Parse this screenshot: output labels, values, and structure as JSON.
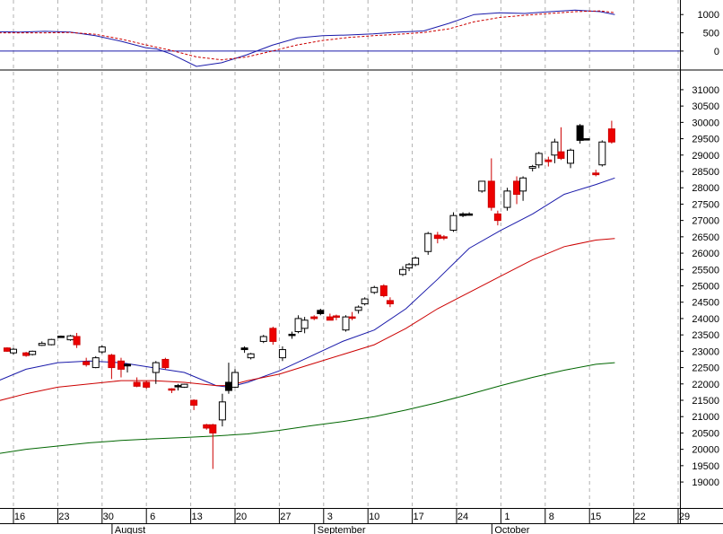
{
  "chart_data": [
    {
      "type": "line",
      "panel": "oscillator",
      "ylim": [
        -420,
        1300
      ],
      "yticks": [
        0,
        500,
        1000
      ],
      "ytick_labels": [
        "0",
        "500",
        "1000"
      ],
      "zero_line": 0,
      "series": [
        {
          "color": "#1a1aaa",
          "style": "solid",
          "x": [
            0,
            7,
            14,
            21,
            28,
            35,
            42,
            45,
            49,
            56,
            63,
            70,
            77,
            84,
            91,
            98,
            105,
            112,
            119,
            126,
            133,
            140,
            147,
            154,
            161,
            168,
            172
          ],
          "values": [
            530,
            520,
            540,
            520,
            420,
            270,
            90,
            60,
            -80,
            -420,
            -320,
            -100,
            160,
            360,
            420,
            440,
            470,
            520,
            550,
            760,
            1000,
            1050,
            1030,
            1080,
            1120,
            1080,
            1000
          ]
        },
        {
          "color": "#cc0000",
          "style": "dashed",
          "x": [
            0,
            7,
            14,
            21,
            28,
            35,
            42,
            49,
            56,
            63,
            70,
            77,
            84,
            91,
            98,
            105,
            112,
            119,
            126,
            133,
            140,
            147,
            154,
            161,
            168,
            172
          ],
          "values": [
            500,
            500,
            500,
            510,
            460,
            330,
            170,
            20,
            -160,
            -240,
            -160,
            0,
            170,
            290,
            370,
            420,
            460,
            510,
            610,
            800,
            920,
            980,
            1030,
            1080,
            1100,
            1050
          ]
        }
      ]
    },
    {
      "type": "candlestick",
      "panel": "price",
      "ylim": [
        18700,
        31300
      ],
      "yticks": [
        19000,
        19500,
        20000,
        20500,
        21000,
        21500,
        22000,
        22500,
        23000,
        23500,
        24000,
        24500,
        25000,
        25500,
        26000,
        26500,
        27000,
        27500,
        28000,
        28500,
        29000,
        29500,
        30000,
        30500,
        31000
      ],
      "ytick_labels": [
        "19000",
        "19500",
        "20000",
        "20500",
        "21000",
        "21500",
        "22000",
        "22500",
        "23000",
        "23500",
        "24000",
        "24500",
        "25000",
        "25500",
        "26000",
        "26500",
        "27000",
        "27500",
        "28000",
        "28500",
        "29000",
        "29500",
        "30000",
        "30500",
        "31000"
      ],
      "xlim": [
        0,
        179
      ],
      "x_ticks": [
        {
          "x": 3,
          "label": "16"
        },
        {
          "x": 10,
          "label": "23"
        },
        {
          "x": 17,
          "label": "30"
        },
        {
          "x": 24,
          "label": "6"
        },
        {
          "x": 31,
          "label": "13"
        },
        {
          "x": 38,
          "label": "20"
        },
        {
          "x": 45,
          "label": "27"
        },
        {
          "x": 52,
          "label": "3"
        },
        {
          "x": 59,
          "label": "10"
        },
        {
          "x": 66,
          "label": "17"
        },
        {
          "x": 73,
          "label": "24"
        },
        {
          "x": 80,
          "label": "1"
        },
        {
          "x": 87,
          "label": "8"
        },
        {
          "x": 94,
          "label": "15"
        },
        {
          "x": 101,
          "label": "22"
        },
        {
          "x": 108,
          "label": "29"
        }
      ],
      "x_labels": [
        {
          "x": 19,
          "label": "August"
        },
        {
          "x": 51,
          "label": "September"
        },
        {
          "x": 79,
          "label": "October"
        }
      ],
      "grid": "vertical-dashed",
      "candles": [
        {
          "x": 0,
          "o": 23150,
          "h": 23200,
          "l": 23100,
          "c": 23150,
          "fill": "black"
        },
        {
          "x": 2,
          "o": 23100,
          "h": 23120,
          "l": 22980,
          "c": 23000,
          "fill": "red"
        },
        {
          "x": 3,
          "o": 22950,
          "h": 23100,
          "l": 22900,
          "c": 23060,
          "fill": "white"
        },
        {
          "x": 5,
          "o": 22950,
          "h": 22980,
          "l": 22830,
          "c": 22870,
          "fill": "red"
        },
        {
          "x": 6,
          "o": 22900,
          "h": 23020,
          "l": 22870,
          "c": 23000,
          "fill": "white"
        },
        {
          "x": 7.5,
          "o": 23180,
          "h": 23300,
          "l": 23160,
          "c": 23240,
          "fill": "white"
        },
        {
          "x": 9,
          "o": 23200,
          "h": 23380,
          "l": 23180,
          "c": 23360,
          "fill": "white"
        },
        {
          "x": 10.5,
          "o": 23450,
          "h": 23480,
          "l": 23420,
          "c": 23460,
          "fill": "black"
        },
        {
          "x": 12,
          "o": 23350,
          "h": 23500,
          "l": 23320,
          "c": 23470,
          "fill": "white"
        },
        {
          "x": 13,
          "o": 23450,
          "h": 23560,
          "l": 23100,
          "c": 23200,
          "fill": "red"
        },
        {
          "x": 14.5,
          "o": 22680,
          "h": 22800,
          "l": 22530,
          "c": 22590,
          "fill": "red"
        },
        {
          "x": 16,
          "o": 22500,
          "h": 22850,
          "l": 22480,
          "c": 22800,
          "fill": "white"
        },
        {
          "x": 17,
          "o": 23130,
          "h": 23180,
          "l": 22930,
          "c": 22980,
          "fill": "white"
        },
        {
          "x": 18.5,
          "o": 22880,
          "h": 22920,
          "l": 22150,
          "c": 22500,
          "fill": "red"
        },
        {
          "x": 20,
          "o": 22700,
          "h": 22800,
          "l": 22200,
          "c": 22450,
          "fill": "red"
        },
        {
          "x": 21,
          "o": 22550,
          "h": 22620,
          "l": 22350,
          "c": 22600,
          "fill": "black"
        },
        {
          "x": 22.5,
          "o": 22050,
          "h": 22200,
          "l": 21900,
          "c": 21930,
          "fill": "red"
        },
        {
          "x": 24,
          "o": 22050,
          "h": 22100,
          "l": 21850,
          "c": 21900,
          "fill": "red"
        },
        {
          "x": 25.5,
          "o": 22350,
          "h": 22700,
          "l": 22000,
          "c": 22650,
          "fill": "white"
        },
        {
          "x": 27,
          "o": 22750,
          "h": 22800,
          "l": 22450,
          "c": 22500,
          "fill": "red"
        },
        {
          "x": 28,
          "o": 21850,
          "h": 21870,
          "l": 21720,
          "c": 21840,
          "fill": "red"
        },
        {
          "x": 29,
          "o": 21950,
          "h": 22000,
          "l": 21800,
          "c": 21950,
          "fill": "black"
        },
        {
          "x": 30,
          "o": 21900,
          "h": 22000,
          "l": 21880,
          "c": 21990,
          "fill": "white"
        },
        {
          "x": 31.5,
          "o": 21500,
          "h": 21530,
          "l": 21200,
          "c": 21350,
          "fill": "red"
        },
        {
          "x": 33.5,
          "o": 20750,
          "h": 20780,
          "l": 20600,
          "c": 20650,
          "fill": "red"
        },
        {
          "x": 34.5,
          "o": 20750,
          "h": 20780,
          "l": 19400,
          "c": 20500,
          "fill": "red"
        },
        {
          "x": 36,
          "o": 20900,
          "h": 21700,
          "l": 20700,
          "c": 21450,
          "fill": "white"
        },
        {
          "x": 37,
          "o": 21800,
          "h": 22650,
          "l": 21700,
          "c": 22050,
          "fill": "black"
        },
        {
          "x": 38,
          "o": 21900,
          "h": 22450,
          "l": 21880,
          "c": 22350,
          "fill": "white"
        },
        {
          "x": 39.5,
          "o": 23050,
          "h": 23150,
          "l": 22950,
          "c": 23100,
          "fill": "black"
        },
        {
          "x": 40.5,
          "o": 22800,
          "h": 22950,
          "l": 22750,
          "c": 22920,
          "fill": "white"
        },
        {
          "x": 42.5,
          "o": 23300,
          "h": 23500,
          "l": 23250,
          "c": 23450,
          "fill": "white"
        },
        {
          "x": 44,
          "o": 23700,
          "h": 23750,
          "l": 23200,
          "c": 23300,
          "fill": "red"
        },
        {
          "x": 45.5,
          "o": 22800,
          "h": 23150,
          "l": 22700,
          "c": 23050,
          "fill": "white"
        },
        {
          "x": 47,
          "o": 23500,
          "h": 23600,
          "l": 23380,
          "c": 23520,
          "fill": "black"
        },
        {
          "x": 48,
          "o": 23600,
          "h": 24100,
          "l": 23550,
          "c": 24000,
          "fill": "white"
        },
        {
          "x": 49,
          "o": 23950,
          "h": 24050,
          "l": 23550,
          "c": 23700,
          "fill": "white"
        },
        {
          "x": 50.5,
          "o": 24050,
          "h": 24100,
          "l": 23950,
          "c": 24000,
          "fill": "red"
        },
        {
          "x": 51.5,
          "o": 24250,
          "h": 24300,
          "l": 24100,
          "c": 24150,
          "fill": "black"
        },
        {
          "x": 53,
          "o": 24050,
          "h": 24150,
          "l": 23950,
          "c": 23950,
          "fill": "red"
        },
        {
          "x": 54,
          "o": 24050,
          "h": 24120,
          "l": 23950,
          "c": 24080,
          "fill": "red"
        },
        {
          "x": 55.5,
          "o": 23650,
          "h": 24100,
          "l": 23600,
          "c": 24050,
          "fill": "white"
        },
        {
          "x": 56.5,
          "o": 24050,
          "h": 24200,
          "l": 23950,
          "c": 24050,
          "fill": "red"
        },
        {
          "x": 57.5,
          "o": 24250,
          "h": 24400,
          "l": 24150,
          "c": 24350,
          "fill": "white"
        },
        {
          "x": 58.5,
          "o": 24450,
          "h": 24650,
          "l": 24400,
          "c": 24600,
          "fill": "white"
        },
        {
          "x": 60,
          "o": 24800,
          "h": 25000,
          "l": 24750,
          "c": 24950,
          "fill": "white"
        },
        {
          "x": 61.5,
          "o": 25000,
          "h": 25050,
          "l": 24650,
          "c": 24700,
          "fill": "red"
        },
        {
          "x": 62.5,
          "o": 24550,
          "h": 24650,
          "l": 24350,
          "c": 24450,
          "fill": "red"
        },
        {
          "x": 64.5,
          "o": 25350,
          "h": 25600,
          "l": 25300,
          "c": 25500,
          "fill": "white"
        },
        {
          "x": 65.5,
          "o": 25550,
          "h": 25700,
          "l": 25450,
          "c": 25650,
          "fill": "white"
        },
        {
          "x": 66.5,
          "o": 25650,
          "h": 25900,
          "l": 25600,
          "c": 25850,
          "fill": "white"
        },
        {
          "x": 68.5,
          "o": 26050,
          "h": 26650,
          "l": 25950,
          "c": 26600,
          "fill": "white"
        },
        {
          "x": 70,
          "o": 26550,
          "h": 26650,
          "l": 26300,
          "c": 26450,
          "fill": "red"
        },
        {
          "x": 71,
          "o": 26500,
          "h": 26550,
          "l": 26400,
          "c": 26500,
          "fill": "red"
        },
        {
          "x": 72.5,
          "o": 26700,
          "h": 27250,
          "l": 26650,
          "c": 27150,
          "fill": "white"
        },
        {
          "x": 74,
          "o": 27150,
          "h": 27250,
          "l": 27100,
          "c": 27200,
          "fill": "black"
        },
        {
          "x": 75,
          "o": 27200,
          "h": 27250,
          "l": 27150,
          "c": 27200,
          "fill": "black"
        },
        {
          "x": 77,
          "o": 27900,
          "h": 28200,
          "l": 27850,
          "c": 28200,
          "fill": "white"
        },
        {
          "x": 78.5,
          "o": 28200,
          "h": 28900,
          "l": 27300,
          "c": 27400,
          "fill": "red"
        },
        {
          "x": 79.5,
          "o": 27200,
          "h": 27300,
          "l": 26850,
          "c": 27000,
          "fill": "red"
        },
        {
          "x": 81,
          "o": 27400,
          "h": 28000,
          "l": 27300,
          "c": 27900,
          "fill": "white"
        },
        {
          "x": 82.5,
          "o": 28200,
          "h": 28350,
          "l": 27500,
          "c": 27800,
          "fill": "red"
        },
        {
          "x": 83.5,
          "o": 27900,
          "h": 28350,
          "l": 27600,
          "c": 28300,
          "fill": "white"
        },
        {
          "x": 85,
          "o": 28600,
          "h": 28700,
          "l": 28500,
          "c": 28650,
          "fill": "white"
        },
        {
          "x": 86,
          "o": 28700,
          "h": 29100,
          "l": 28600,
          "c": 29050,
          "fill": "white"
        },
        {
          "x": 87.5,
          "o": 28850,
          "h": 28950,
          "l": 28650,
          "c": 28800,
          "fill": "red"
        },
        {
          "x": 88.5,
          "o": 29000,
          "h": 29500,
          "l": 28750,
          "c": 29400,
          "fill": "white"
        },
        {
          "x": 89.5,
          "o": 29100,
          "h": 29850,
          "l": 28850,
          "c": 28900,
          "fill": "red"
        },
        {
          "x": 91,
          "o": 28750,
          "h": 29200,
          "l": 28600,
          "c": 29150,
          "fill": "white"
        },
        {
          "x": 92.5,
          "o": 29900,
          "h": 29950,
          "l": 29350,
          "c": 29450,
          "fill": "black"
        },
        {
          "x": 93.5,
          "o": 29500,
          "h": 29500,
          "l": 29450,
          "c": 29480,
          "fill": "black"
        },
        {
          "x": 95,
          "o": 28450,
          "h": 28550,
          "l": 28350,
          "c": 28400,
          "fill": "red"
        },
        {
          "x": 96,
          "o": 28700,
          "h": 29450,
          "l": 28650,
          "c": 29400,
          "fill": "white"
        },
        {
          "x": 97.5,
          "o": 29800,
          "h": 30050,
          "l": 29350,
          "c": 29400,
          "fill": "red"
        }
      ],
      "series": [
        {
          "color": "#1a1aaa",
          "x": [
            0,
            5,
            10,
            15,
            20,
            25,
            30,
            35,
            37,
            40,
            45,
            50,
            55,
            60,
            65,
            70,
            75,
            80,
            85,
            90,
            95,
            98
          ],
          "values": [
            22050,
            22450,
            22650,
            22700,
            22650,
            22500,
            22350,
            21950,
            21900,
            22050,
            22400,
            22850,
            23300,
            23650,
            24300,
            25200,
            26150,
            26700,
            27200,
            27800,
            28100,
            28300
          ]
        },
        {
          "color": "#cc0000",
          "x": [
            0,
            5,
            10,
            15,
            20,
            25,
            30,
            35,
            37,
            40,
            45,
            50,
            55,
            60,
            65,
            70,
            75,
            80,
            85,
            90,
            95,
            98
          ],
          "values": [
            21450,
            21700,
            21900,
            22000,
            22100,
            22100,
            22050,
            21950,
            21950,
            22100,
            22300,
            22600,
            22900,
            23200,
            23700,
            24300,
            24800,
            25300,
            25800,
            26200,
            26400,
            26450
          ]
        },
        {
          "color": "#006600",
          "x": [
            0,
            5,
            10,
            15,
            20,
            25,
            30,
            35,
            40,
            45,
            50,
            55,
            60,
            65,
            70,
            75,
            80,
            85,
            90,
            95,
            98
          ],
          "values": [
            19850,
            20000,
            20100,
            20200,
            20270,
            20320,
            20360,
            20410,
            20470,
            20580,
            20720,
            20850,
            21000,
            21200,
            21430,
            21680,
            21950,
            22200,
            22420,
            22600,
            22650
          ]
        }
      ]
    }
  ]
}
